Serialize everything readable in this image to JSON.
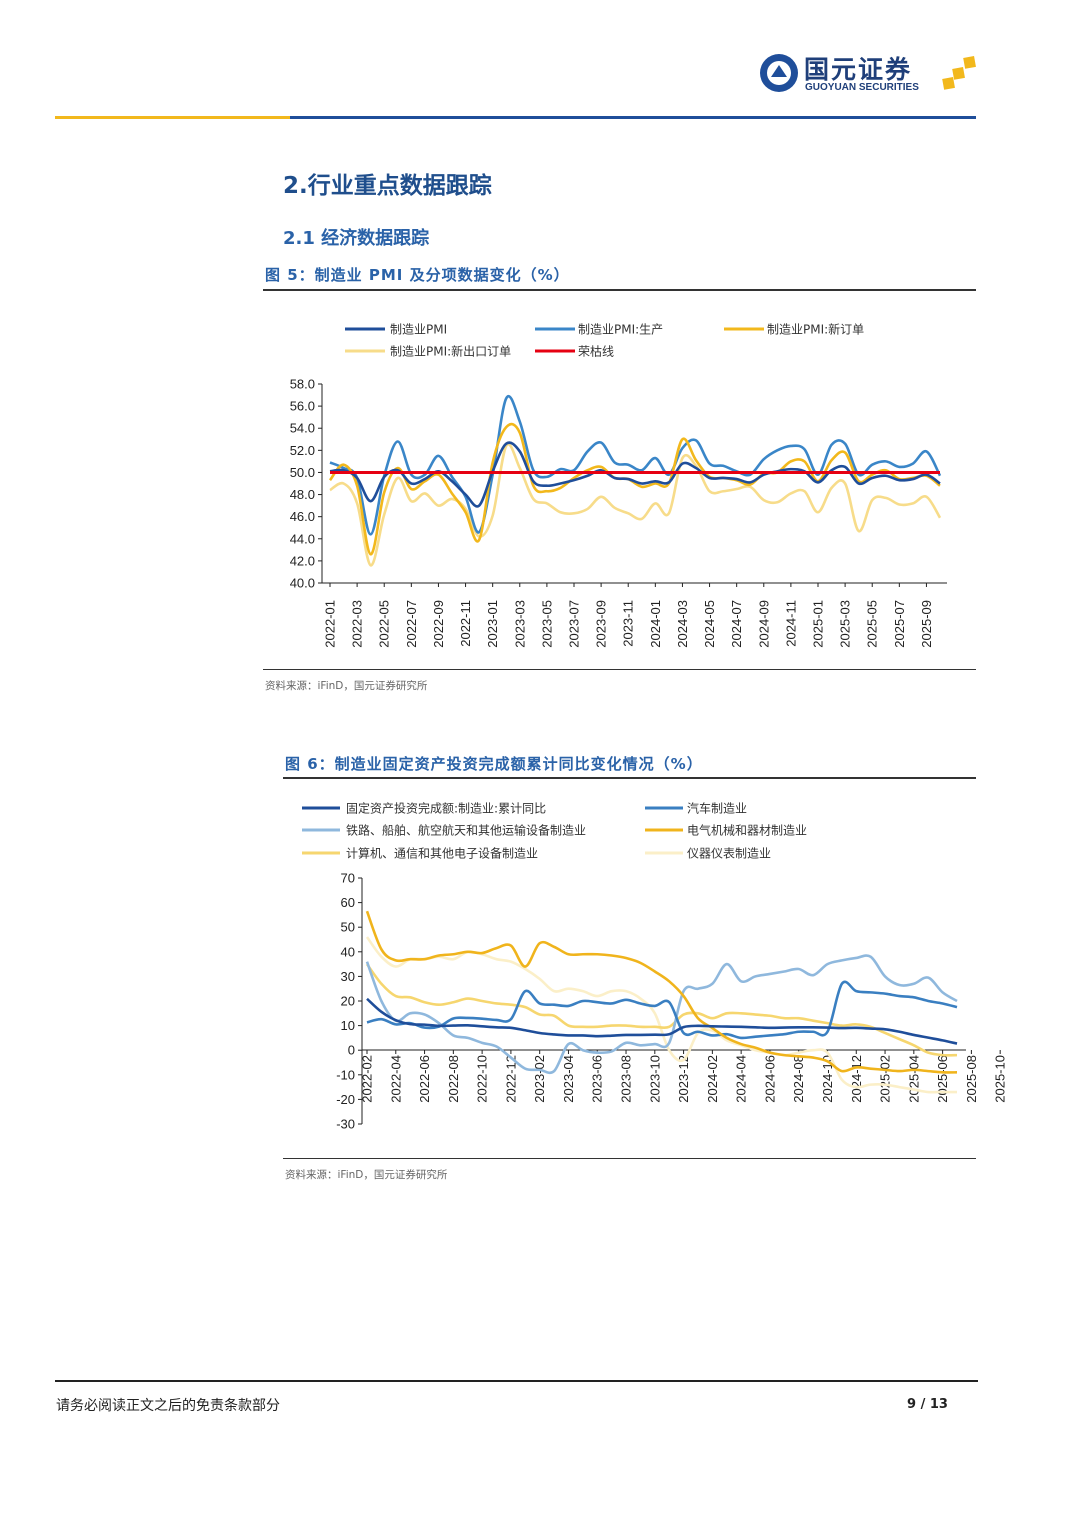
{
  "header": {
    "logo_cn": "国元证券",
    "logo_en": "GUOYUAN SECURITIES",
    "colors": {
      "blue": "#1f4e9a",
      "gold": "#f2b81c"
    }
  },
  "section_title": "2.行业重点数据跟踪",
  "subsection_title": "2.1 经济数据跟踪",
  "figures": [
    {
      "title": "图 5：制造业 PMI 及分项数据变化（%）",
      "source": "资料来源：iFinD，国元证券研究所"
    },
    {
      "title": "图 6：制造业固定资产投资完成额累计同比变化情况（%）",
      "source": "资料来源：iFinD，国元证券研究所"
    }
  ],
  "footer": {
    "disclaimer": "请务必阅读正文之后的免责条款部分",
    "page": "9 / 13"
  },
  "chart_data": [
    {
      "type": "line",
      "title": "",
      "xlabel": "",
      "ylabel": "",
      "ylim": [
        40,
        58
      ],
      "yticks": [
        "58.0",
        "56.0",
        "54.0",
        "52.0",
        "50.0",
        "48.0",
        "46.0",
        "44.0",
        "42.0",
        "40.0"
      ],
      "x_start": "2022-01",
      "x_end": "2025-10",
      "xtick_labels": [
        "2022-01",
        "2022-03",
        "2022-05",
        "2022-07",
        "2022-09",
        "2022-11",
        "2023-01",
        "2023-03",
        "2023-05",
        "2023-07",
        "2023-09",
        "2023-11",
        "2024-01",
        "2024-03",
        "2024-05",
        "2024-07",
        "2024-09",
        "2024-11",
        "2025-01",
        "2025-03",
        "2025-05",
        "2025-07",
        "2025-09"
      ],
      "grid": false,
      "legend": "top",
      "series": [
        {
          "name": "制造业PMI",
          "color": "#1f4e9a",
          "values": [
            50.1,
            50.2,
            49.5,
            47.4,
            49.6,
            50.2,
            49.0,
            49.4,
            50.1,
            49.2,
            48.0,
            47.0,
            50.1,
            52.6,
            51.9,
            49.2,
            48.8,
            49.0,
            49.3,
            49.7,
            50.2,
            49.5,
            49.4,
            49.0,
            49.2,
            49.1,
            50.8,
            50.4,
            49.5,
            49.5,
            49.4,
            49.1,
            49.8,
            50.1,
            50.3,
            50.1,
            49.1,
            50.2,
            50.5,
            49.0,
            49.5,
            49.7,
            49.3,
            49.4,
            49.8,
            49.0
          ]
        },
        {
          "name": "制造业PMI:生产",
          "color": "#3a86c8",
          "values": [
            50.9,
            50.4,
            49.5,
            44.4,
            49.7,
            52.8,
            49.8,
            49.8,
            51.5,
            49.6,
            47.8,
            44.6,
            49.8,
            56.7,
            54.6,
            50.2,
            49.6,
            50.3,
            50.2,
            51.9,
            52.7,
            50.9,
            50.7,
            50.2,
            51.3,
            49.8,
            52.2,
            52.9,
            50.8,
            50.6,
            50.1,
            49.8,
            51.2,
            52.0,
            52.4,
            52.1,
            49.8,
            52.5,
            52.6,
            49.8,
            50.7,
            51.0,
            50.5,
            50.8,
            51.9,
            49.7
          ]
        },
        {
          "name": "制造业PMI:新订单",
          "color": "#f2b81c",
          "values": [
            49.3,
            50.7,
            48.8,
            42.6,
            48.2,
            50.4,
            48.5,
            49.2,
            49.8,
            48.1,
            46.4,
            43.9,
            50.9,
            54.1,
            53.6,
            48.8,
            48.3,
            48.6,
            49.5,
            50.2,
            50.5,
            49.5,
            49.4,
            48.7,
            49.0,
            49.0,
            53.0,
            51.1,
            49.6,
            49.5,
            49.3,
            48.9,
            49.9,
            50.0,
            51.0,
            51.0,
            49.2,
            51.1,
            51.8,
            49.2,
            49.8,
            50.2,
            49.4,
            49.5,
            49.7,
            48.8
          ]
        },
        {
          "name": "制造业PMI:新出口订单",
          "color": "#f7dc8a",
          "values": [
            48.4,
            49.0,
            47.2,
            41.6,
            46.2,
            49.5,
            47.4,
            48.1,
            47.0,
            47.6,
            46.7,
            44.2,
            46.1,
            52.4,
            50.4,
            47.6,
            47.2,
            46.4,
            46.3,
            46.7,
            47.8,
            46.8,
            46.3,
            45.8,
            47.2,
            46.3,
            51.3,
            50.6,
            48.3,
            48.3,
            48.5,
            48.7,
            47.5,
            47.3,
            48.1,
            48.3,
            46.4,
            48.6,
            49.0,
            44.7,
            47.5,
            47.7,
            47.1,
            47.2,
            47.8,
            45.9
          ]
        },
        {
          "name": "荣枯线",
          "color": "#e60012",
          "values": [
            50,
            50,
            50,
            50,
            50,
            50,
            50,
            50,
            50,
            50,
            50,
            50,
            50,
            50,
            50,
            50,
            50,
            50,
            50,
            50,
            50,
            50,
            50,
            50,
            50,
            50,
            50,
            50,
            50,
            50,
            50,
            50,
            50,
            50,
            50,
            50,
            50,
            50,
            50,
            50,
            50,
            50,
            50,
            50,
            50,
            50
          ]
        }
      ]
    },
    {
      "type": "line",
      "title": "",
      "xlabel": "",
      "ylabel": "",
      "ylim": [
        -30,
        70
      ],
      "yticks": [
        "70",
        "60",
        "50",
        "40",
        "30",
        "20",
        "10",
        "0",
        "-10",
        "-20",
        "-30"
      ],
      "x_months": "Feb–Dec of each year, 2022-02 to 2025-10",
      "xtick_labels": [
        "2022-02",
        "2022-04",
        "2022-06",
        "2022-08",
        "2022-10",
        "2022-12",
        "2023-02",
        "2023-04",
        "2023-06",
        "2023-08",
        "2023-10",
        "2023-12",
        "2024-02",
        "2024-04",
        "2024-06",
        "2024-08",
        "2024-10",
        "2024-12",
        "2025-02",
        "2025-04",
        "2025-06",
        "2025-08",
        "2025-10"
      ],
      "grid": false,
      "legend": "top",
      "series": [
        {
          "name": "固定资产投资完成额:制造业:累计同比",
          "color": "#1f4e9a",
          "values": [
            20.9,
            15.6,
            12.2,
            10.6,
            10.4,
            9.9,
            10.0,
            10.1,
            9.7,
            9.3,
            9.1,
            8.1,
            7.0,
            6.4,
            6.0,
            6.0,
            5.7,
            5.9,
            6.2,
            6.2,
            6.3,
            6.5,
            9.4,
            9.9,
            9.7,
            9.6,
            9.5,
            9.3,
            9.1,
            9.2,
            9.3,
            9.3,
            9.2,
            9.0,
            9.1,
            8.8,
            8.5,
            7.5,
            6.2,
            5.1,
            4.0,
            2.7
          ]
        },
        {
          "name": "汽车制造业",
          "color": "#3a7fc1",
          "values": [
            11.3,
            12.6,
            10.5,
            11.0,
            9.2,
            9.6,
            12.9,
            13.1,
            12.8,
            12.3,
            12.6,
            24.0,
            19.0,
            18.5,
            18.0,
            20.0,
            19.5,
            19.0,
            20.5,
            19.0,
            18.0,
            19.5,
            7.0,
            7.5,
            6.0,
            6.5,
            5.0,
            5.5,
            6.0,
            6.5,
            7.5,
            7.5,
            7.5,
            27.0,
            24.0,
            23.5,
            23.0,
            22.0,
            21.5,
            20.0,
            19.0,
            17.5
          ]
        },
        {
          "name": "铁路、船舶、航空航天和其他运输设备制造业",
          "color": "#8fb8dd",
          "values": [
            36,
            20,
            12,
            15,
            14.5,
            11,
            6,
            5,
            3,
            1.5,
            -3,
            -7.5,
            -8,
            -8.5,
            2.5,
            0,
            -1,
            -0.5,
            3,
            2,
            2.5,
            3,
            24,
            25,
            27,
            35,
            28,
            30,
            31,
            32,
            33,
            30.5,
            35,
            36.5,
            37.5,
            38,
            30,
            26.5,
            27,
            29.5,
            23.5,
            20
          ]
        },
        {
          "name": "电气机械和器材制造业",
          "color": "#f0b41c",
          "values": [
            56.5,
            41,
            36.5,
            37,
            37,
            38.5,
            39,
            40,
            39.5,
            41.5,
            42.5,
            34,
            43.5,
            42,
            39,
            39,
            39,
            38.5,
            37.5,
            35.5,
            32,
            28,
            22,
            13,
            9,
            5,
            2.5,
            1,
            -1,
            -2,
            -2.5,
            -3,
            -4.5,
            -8.5,
            -7,
            -7.5,
            -8,
            -8.5,
            -8,
            -8.5,
            -9,
            -9
          ]
        },
        {
          "name": "计算机、通信和其他电子设备制造业",
          "color": "#f6d66f",
          "values": [
            35,
            27,
            22,
            21.5,
            19.5,
            18.5,
            19.5,
            21,
            20,
            19,
            18.5,
            17.5,
            14.5,
            14,
            10,
            9.5,
            9.5,
            10,
            10,
            9.5,
            9.5,
            9.5,
            14.5,
            15,
            13,
            15,
            15,
            14.5,
            14,
            13,
            13,
            12,
            11,
            10,
            10.5,
            9.5,
            7,
            4.5,
            2,
            -1,
            -2,
            -2
          ]
        },
        {
          "name": "仪器仪表制造业",
          "color": "#fbefc8",
          "values": [
            46,
            38,
            34,
            37,
            37,
            38,
            37,
            40,
            39,
            37,
            36,
            33,
            29,
            24,
            25,
            24,
            22,
            24,
            24,
            21,
            15,
            0,
            -4,
            7,
            8,
            4,
            2,
            0,
            -1,
            -2,
            -1,
            0,
            -1,
            -12,
            -15,
            -14,
            -14,
            -15,
            -16,
            -17,
            -17,
            -17
          ]
        }
      ]
    }
  ]
}
